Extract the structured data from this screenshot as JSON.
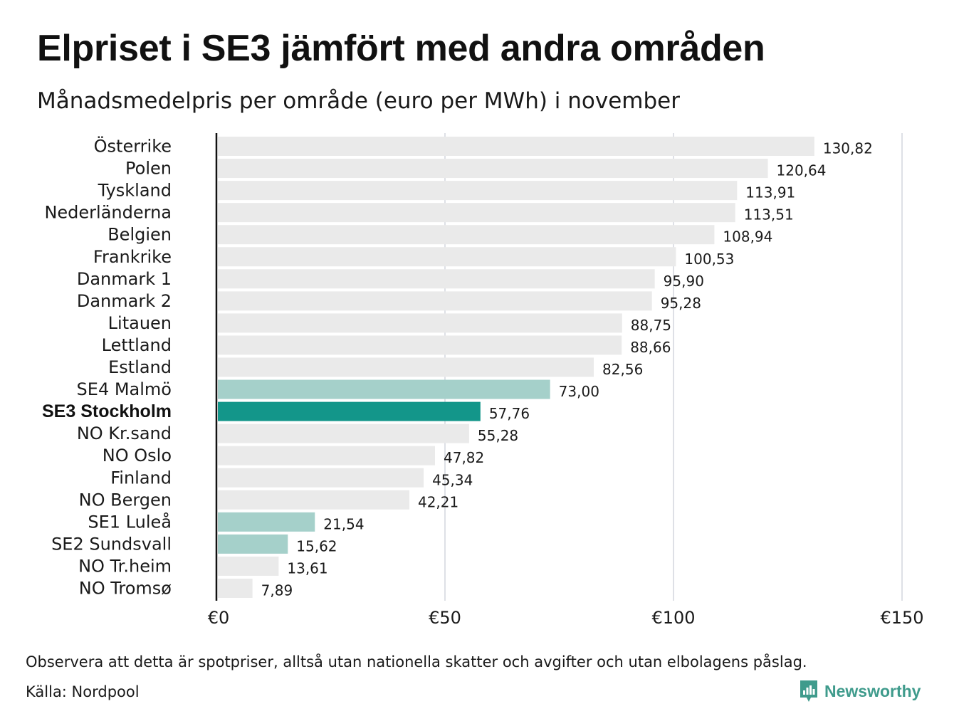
{
  "header": {
    "title": "Elpriset i SE3 jämfört med andra områden",
    "subtitle": "Månadsmedelpris per område (euro per MWh) i november"
  },
  "chart_data": {
    "type": "bar",
    "orientation": "horizontal",
    "categories": [
      "Österrike",
      "Polen",
      "Tyskland",
      "Nederländerna",
      "Belgien",
      "Frankrike",
      "Danmark  1",
      "Danmark  2",
      "Litauen",
      "Lettland",
      "Estland",
      "SE4  Malmö",
      "SE3 Stockholm",
      "NO Kr.sand",
      "NO Oslo",
      "Finland",
      "NO Bergen",
      "SE1  Luleå",
      "SE2  Sundsvall",
      "NO Tr.heim",
      "NO Tromsø"
    ],
    "values": [
      130.82,
      120.64,
      113.91,
      113.51,
      108.94,
      100.53,
      95.9,
      95.28,
      88.75,
      88.66,
      82.56,
      73.0,
      57.76,
      55.28,
      47.82,
      45.34,
      42.21,
      21.54,
      15.62,
      13.61,
      7.89
    ],
    "value_labels": [
      "130,82",
      "120,64",
      "113,91",
      "113,51",
      "108,94",
      "100,53",
      "95,90",
      "95,28",
      "88,75",
      "88,66",
      "82,56",
      "73,00",
      "57,76",
      "55,28",
      "47,82",
      "45,34",
      "42,21",
      "21,54",
      "15,62",
      "13,61",
      "7,89"
    ],
    "highlight": [
      "normal",
      "normal",
      "normal",
      "normal",
      "normal",
      "normal",
      "normal",
      "normal",
      "normal",
      "normal",
      "normal",
      "swedish-area",
      "primary",
      "normal",
      "normal",
      "normal",
      "normal",
      "swedish-area",
      "swedish-area",
      "normal",
      "normal"
    ],
    "xlim": [
      0,
      150
    ],
    "x_ticks": [
      0,
      50,
      100,
      150
    ],
    "x_tick_labels": [
      "€0",
      "€50",
      "€100",
      "€150"
    ],
    "grid": true,
    "colors": {
      "normal": "#eaeaea",
      "swedish-area": "#a5d0ca",
      "primary": "#13968a",
      "gridline": "#c9ccd6",
      "axis": "#111111"
    }
  },
  "footer": {
    "note": "Observera att detta är spotpriser, alltså utan nationella skatter och avgifter och utan elbolagens påslag.",
    "source": "Källa: Nordpool",
    "brand": "Newsworthy",
    "brand_color": "#3f9b8c",
    "brand_icon": "bar-chart-speech-bubble-icon"
  }
}
